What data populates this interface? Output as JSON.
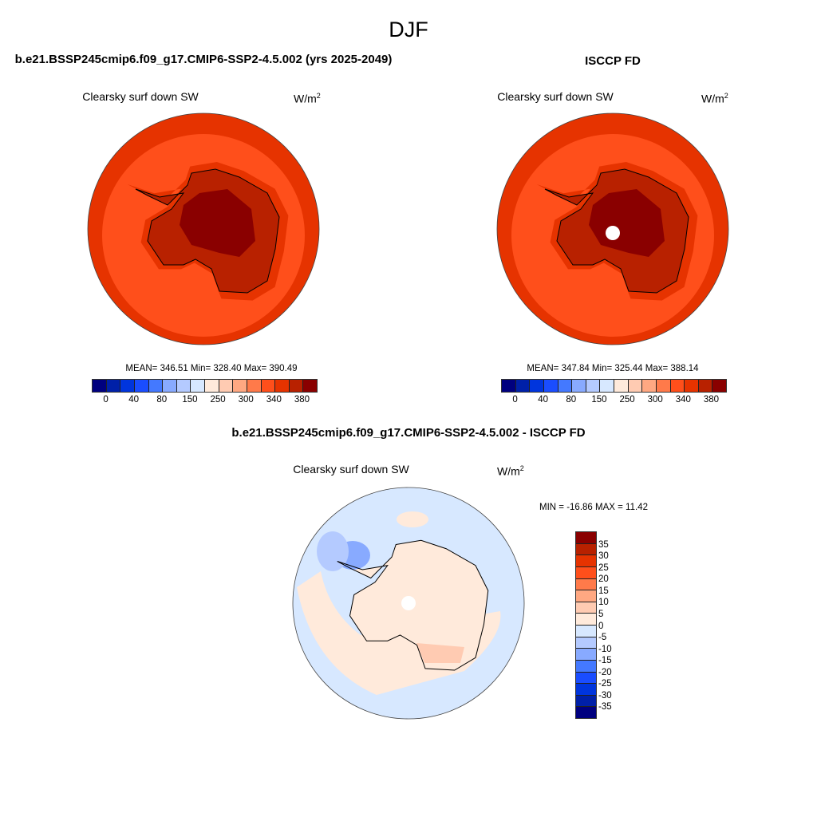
{
  "title": "DJF",
  "colors": [
    "#00007f",
    "#0020a8",
    "#0035dd",
    "#1a4dff",
    "#4479ff",
    "#88aaff",
    "#b4caff",
    "#d7e8ff",
    "#ffeadb",
    "#ffcbb2",
    "#ffa882",
    "#ff7a4a",
    "#ff4f1b",
    "#e63300",
    "#b82100",
    "#8a0000"
  ],
  "panels": [
    {
      "title": "b.e21.BSSP245cmip6.f09_g17.CMIP6-SSP2-4.5.002 (yrs 2025-2049)",
      "variable": "Clearsky surf down SW",
      "units": "W/m",
      "units_sup": "2",
      "stats": "MEAN= 346.51  Min= 328.40  Max= 390.49",
      "colorbar_labels": [
        "0",
        "40",
        "80",
        "150",
        "250",
        "300",
        "340",
        "380"
      ]
    },
    {
      "title": "ISCCP FD",
      "variable": "Clearsky surf down SW",
      "units": "W/m",
      "units_sup": "2",
      "stats": "MEAN= 347.84  Min= 325.44  Max= 388.14",
      "colorbar_labels": [
        "0",
        "40",
        "80",
        "150",
        "250",
        "300",
        "340",
        "380"
      ]
    },
    {
      "title": "b.e21.BSSP245cmip6.f09_g17.CMIP6-SSP2-4.5.002 - ISCCP FD",
      "variable": "Clearsky surf down SW",
      "units": "W/m",
      "units_sup": "2",
      "stats": "MIN = -16.86 MAX =  11.42",
      "colorbar_labels": [
        "35",
        "30",
        "25",
        "20",
        "15",
        "10",
        "5",
        "0",
        "-5",
        "-10",
        "-15",
        "-20",
        "-25",
        "-30",
        "-35"
      ]
    }
  ]
}
